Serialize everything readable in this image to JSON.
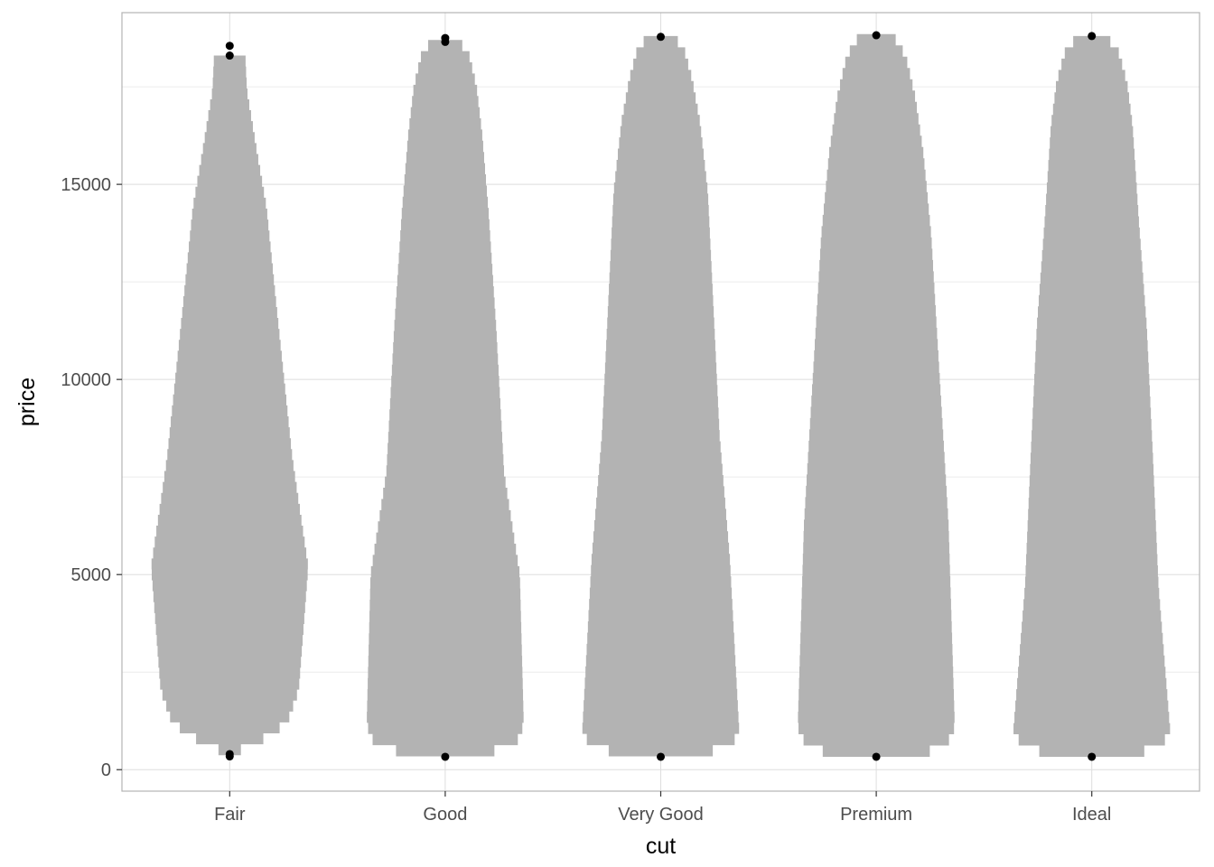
{
  "chart_data": {
    "type": "violin",
    "title": "",
    "xlabel": "cut",
    "ylabel": "price",
    "categories": [
      "Fair",
      "Good",
      "Very Good",
      "Premium",
      "Ideal"
    ],
    "ylim": [
      -550,
      19400
    ],
    "yticks": [
      0,
      5000,
      10000,
      15000
    ],
    "ytick_labels": [
      "0",
      "5000",
      "10000",
      "15000"
    ],
    "grid": true,
    "legend": "none",
    "colors": {
      "violin_fill": "#b3b3b3",
      "outlier": "#000000",
      "grid_major": "#dedede",
      "grid_minor": "#ececec",
      "panel_border": "#b3b3b3"
    },
    "series": [
      {
        "category": "Fair",
        "half_width_profile": [
          [
            370,
            0.03
          ],
          [
            460,
            0.1
          ],
          [
            600,
            0.22
          ],
          [
            720,
            0.35
          ],
          [
            900,
            0.55
          ],
          [
            1300,
            0.75
          ],
          [
            2050,
            0.88
          ],
          [
            5200,
            1.0
          ],
          [
            7950,
            0.8
          ],
          [
            11800,
            0.6
          ],
          [
            14400,
            0.47
          ],
          [
            15800,
            0.35
          ],
          [
            17400,
            0.22
          ],
          [
            18250,
            0.2
          ],
          [
            18300,
            0.0
          ]
        ],
        "outliers": [
          340,
          400,
          18300,
          18550
        ]
      },
      {
        "category": "Good",
        "half_width_profile": [
          [
            340,
            0.03
          ],
          [
            390,
            0.25
          ],
          [
            450,
            0.55
          ],
          [
            560,
            0.8
          ],
          [
            650,
            0.9
          ],
          [
            1150,
            1.0
          ],
          [
            5000,
            0.95
          ],
          [
            7600,
            0.75
          ],
          [
            11300,
            0.65
          ],
          [
            14350,
            0.55
          ],
          [
            16300,
            0.47
          ],
          [
            17500,
            0.4
          ],
          [
            18350,
            0.3
          ],
          [
            18600,
            0.2
          ],
          [
            18700,
            0.0
          ]
        ],
        "outliers": [
          330,
          18650,
          18750
        ]
      },
      {
        "category": "Very Good",
        "half_width_profile": [
          [
            340,
            0.03
          ],
          [
            380,
            0.3
          ],
          [
            450,
            0.6
          ],
          [
            560,
            0.8
          ],
          [
            650,
            0.9
          ],
          [
            950,
            1.0
          ],
          [
            5400,
            0.88
          ],
          [
            8550,
            0.75
          ],
          [
            11900,
            0.67
          ],
          [
            14800,
            0.6
          ],
          [
            16600,
            0.5
          ],
          [
            17700,
            0.4
          ],
          [
            18450,
            0.3
          ],
          [
            18700,
            0.2
          ],
          [
            18800,
            0.0
          ]
        ],
        "outliers": [
          330,
          18780
        ]
      },
      {
        "category": "Premium",
        "half_width_profile": [
          [
            330,
            0.03
          ],
          [
            370,
            0.3
          ],
          [
            430,
            0.6
          ],
          [
            540,
            0.8
          ],
          [
            650,
            0.9
          ],
          [
            1100,
            1.0
          ],
          [
            6300,
            0.92
          ],
          [
            10300,
            0.8
          ],
          [
            13700,
            0.7
          ],
          [
            15800,
            0.6
          ],
          [
            17200,
            0.5
          ],
          [
            18100,
            0.4
          ],
          [
            18600,
            0.3
          ],
          [
            18800,
            0.2
          ],
          [
            18850,
            0.0
          ]
        ],
        "outliers": [
          330,
          18820
        ]
      },
      {
        "category": "Ideal",
        "half_width_profile": [
          [
            330,
            0.03
          ],
          [
            370,
            0.3
          ],
          [
            430,
            0.6
          ],
          [
            560,
            0.8
          ],
          [
            680,
            0.9
          ],
          [
            950,
            1.0
          ],
          [
            4700,
            0.85
          ],
          [
            7950,
            0.78
          ],
          [
            11350,
            0.7
          ],
          [
            14050,
            0.6
          ],
          [
            16500,
            0.52
          ],
          [
            17600,
            0.45
          ],
          [
            18350,
            0.35
          ],
          [
            18700,
            0.22
          ],
          [
            18800,
            0.0
          ]
        ],
        "outliers": [
          330,
          18800
        ]
      }
    ]
  }
}
